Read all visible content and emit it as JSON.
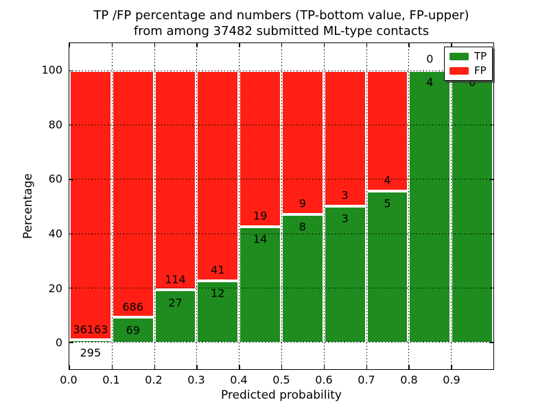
{
  "chart_data": {
    "type": "bar",
    "stacked": true,
    "title_line1": "TP /FP percentage and numbers (TP-bottom value, FP-upper)",
    "title_line2": "from among 37482 submitted ML-type contacts",
    "xlabel": "Predicted probability",
    "ylabel": "Percentage",
    "total_submitted": 37482,
    "categories": [
      "0.0-0.1",
      "0.1-0.2",
      "0.2-0.3",
      "0.3-0.4",
      "0.4-0.5",
      "0.5-0.6",
      "0.6-0.7",
      "0.7-0.8",
      "0.8-0.9",
      "0.9-1.0"
    ],
    "series": [
      {
        "name": "TP",
        "color": "#1e8c1e",
        "counts": [
          295,
          69,
          27,
          12,
          14,
          8,
          3,
          5,
          4,
          6
        ]
      },
      {
        "name": "FP",
        "color": "#ff1f14",
        "counts": [
          36163,
          686,
          114,
          41,
          19,
          9,
          3,
          4,
          0,
          0
        ]
      }
    ],
    "tp_pct": [
      0.81,
      9.14,
      19.15,
      22.64,
      42.42,
      47.06,
      50.0,
      55.56,
      100.0,
      100.0
    ],
    "x_tick_labels": [
      "0.0",
      "0.1",
      "0.2",
      "0.3",
      "0.4",
      "0.5",
      "0.6",
      "0.7",
      "0.8",
      "0.9"
    ],
    "y_tick_values": [
      0,
      20,
      40,
      60,
      80,
      100
    ],
    "xlim": [
      0.0,
      1.0
    ],
    "ylim": [
      -10,
      110
    ],
    "grid": {
      "style": "dotted",
      "color": "#000000",
      "on_top": true
    },
    "legend": {
      "position": "upper-right",
      "items": [
        {
          "label": "TP",
          "color": "#1e8c1e"
        },
        {
          "label": "FP",
          "color": "#ff1f14"
        }
      ]
    },
    "colors": {
      "background": "#ffffff",
      "text": "#000000"
    }
  }
}
